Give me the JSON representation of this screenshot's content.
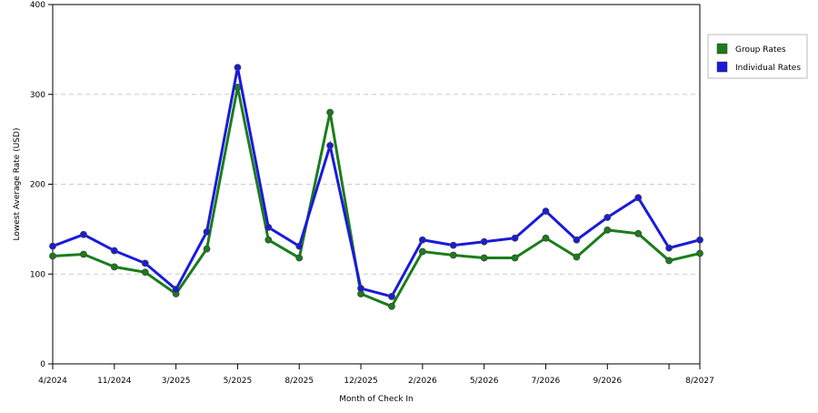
{
  "chart_data": {
    "type": "line",
    "x_label": "Month of Check In",
    "y_label": "Lowest Average Rate (USD)",
    "categories": [
      "4/2024",
      null,
      "11/2024",
      null,
      "3/2025",
      null,
      "5/2025",
      null,
      "8/2025",
      null,
      "12/2025",
      null,
      "2/2026",
      null,
      "5/2026",
      null,
      "7/2026",
      null,
      "9/2026",
      null,
      null,
      "8/2027"
    ],
    "series": [
      {
        "name": "Group Rates",
        "color": "#1b7d1b",
        "values": [
          120,
          122,
          108,
          102,
          78,
          128,
          308,
          138,
          118,
          280,
          78,
          64,
          125,
          121,
          118,
          118,
          140,
          119,
          149,
          145,
          115,
          123
        ]
      },
      {
        "name": "Individual Rates",
        "color": "#1a1adb",
        "values": [
          131,
          144,
          126,
          112,
          83,
          147,
          330,
          152,
          131,
          243,
          84,
          75,
          138,
          132,
          136,
          140,
          170,
          138,
          163,
          185,
          129,
          138
        ]
      }
    ],
    "ylim": [
      0,
      400
    ],
    "yticks": [
      0,
      100,
      200,
      300,
      400
    ],
    "grid": true,
    "legend": "right"
  }
}
